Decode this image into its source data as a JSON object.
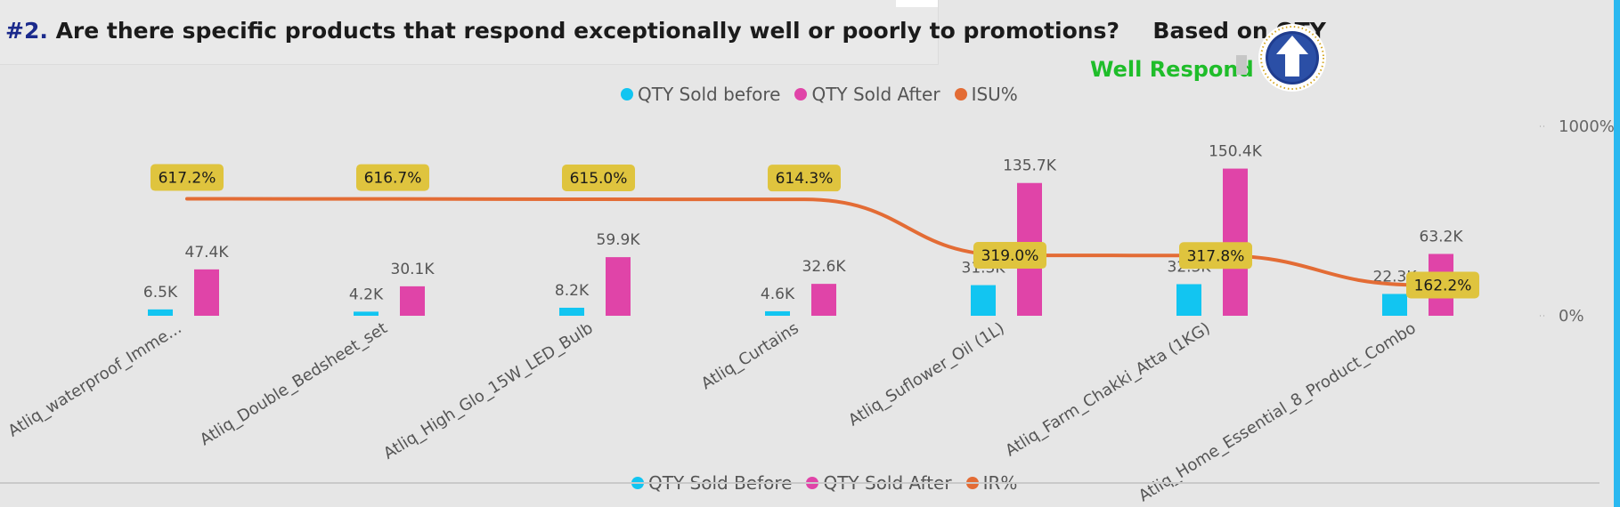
{
  "header": {
    "title_num": "#2.",
    "title_text": "Are there specific products that respond exceptionally well or poorly to promotions?",
    "title_suffix": "Based on QTY"
  },
  "badge": {
    "label": "Well Respond",
    "icon": "up-arrow-icon"
  },
  "legend_top": [
    {
      "label": "QTY Sold before",
      "color": "#12c5f1"
    },
    {
      "label": "QTY Sold After",
      "color": "#e044a8"
    },
    {
      "label": "ISU%",
      "color": "#e36c35"
    }
  ],
  "legend_bottom": [
    {
      "label": "QTY Sold Before",
      "color": "#12c5f1"
    },
    {
      "label": "QTY Sold After",
      "color": "#e044a8"
    },
    {
      "label": "IR%",
      "color": "#e36c35"
    }
  ],
  "chart_data": {
    "type": "bar",
    "categories": [
      "Atliq_waterproof_Imme...",
      "Atliq_Double_Bedsheet_set",
      "Atliq_High_Glo_15W_LED_Bulb",
      "Atliq_Curtains",
      "Atliq_Suflower_Oil (1L)",
      "Atliq_Farm_Chakki_Atta (1KG)",
      "Atliq_Home_Essential_8_Product_Combo"
    ],
    "series": [
      {
        "name": "QTY Sold before",
        "type": "bar",
        "color": "#12c5f1",
        "values": [
          6.5,
          4.2,
          8.2,
          4.6,
          31.3,
          32.3,
          22.3
        ],
        "labels": [
          "6.5K",
          "4.2K",
          "8.2K",
          "4.6K",
          "31.3K",
          "32.3K",
          "22.3K"
        ]
      },
      {
        "name": "QTY Sold After",
        "type": "bar",
        "color": "#e044a8",
        "values": [
          47.4,
          30.1,
          59.9,
          32.6,
          135.7,
          150.4,
          63.2
        ],
        "labels": [
          "47.4K",
          "30.1K",
          "59.9K",
          "32.6K",
          "135.7K",
          "150.4K",
          "63.2K"
        ]
      },
      {
        "name": "ISU%",
        "type": "line",
        "color": "#e36c35",
        "values": [
          617.2,
          616.7,
          615.0,
          614.3,
          319.0,
          317.8,
          162.2
        ],
        "labels": [
          "617.2%",
          "616.7%",
          "615.0%",
          "614.3%",
          "319.0%",
          "317.8%",
          "162.2%"
        ]
      }
    ],
    "y2_ticks": [
      "1000%",
      "0%"
    ],
    "y2_lim": [
      0,
      1000
    ]
  }
}
